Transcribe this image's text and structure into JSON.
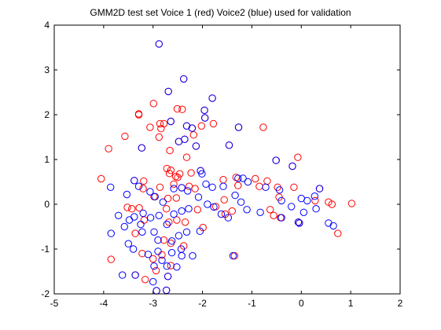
{
  "chart_data": {
    "type": "scatter",
    "title": "GMM2D test set Voice 1 (red) Voice2 (blue) used for validation",
    "xlabel": "",
    "ylabel": "",
    "xlim": [
      -5,
      2
    ],
    "ylim": [
      -2,
      4
    ],
    "xticks": [
      -5,
      -4,
      -3,
      -2,
      -1,
      0,
      1,
      2
    ],
    "yticks": [
      -2,
      -1,
      0,
      1,
      2,
      3,
      4
    ],
    "grid": false,
    "marker": "circle",
    "series": [
      {
        "color": "#ff0000",
        "points": [
          [
            -2.88,
            3.58
          ],
          [
            -2.38,
            2.8
          ],
          [
            -2.69,
            2.52
          ],
          [
            -2.99,
            2.25
          ],
          [
            -3.29,
            2.02
          ],
          [
            -3.29,
            2.0
          ],
          [
            -2.51,
            2.13
          ],
          [
            -2.41,
            2.12
          ],
          [
            -1.96,
            2.1
          ],
          [
            -1.8,
            2.37
          ],
          [
            -1.95,
            1.93
          ],
          [
            -2.78,
            1.8
          ],
          [
            -2.86,
            1.8
          ],
          [
            -2.64,
            1.85
          ],
          [
            -3.06,
            1.72
          ],
          [
            -2.84,
            1.69
          ],
          [
            -2.32,
            1.75
          ],
          [
            -2.21,
            1.7
          ],
          [
            -2.18,
            1.55
          ],
          [
            -2.02,
            1.75
          ],
          [
            -1.78,
            1.8
          ],
          [
            -1.27,
            1.72
          ],
          [
            -0.77,
            1.72
          ],
          [
            -2.88,
            1.5
          ],
          [
            -3.57,
            1.52
          ],
          [
            -2.36,
            1.45
          ],
          [
            -2.13,
            1.3
          ],
          [
            -2.66,
            1.2
          ],
          [
            -2.48,
            1.4
          ],
          [
            -3.9,
            1.24
          ],
          [
            -1.46,
            1.32
          ],
          [
            -2.32,
            1.05
          ],
          [
            -3.23,
            1.26
          ],
          [
            -0.07,
            1.05
          ],
          [
            -0.51,
            0.98
          ],
          [
            -0.18,
            0.85
          ],
          [
            -2.72,
            0.8
          ],
          [
            -2.64,
            0.76
          ],
          [
            -2.67,
            0.69
          ],
          [
            -2.54,
            0.62
          ],
          [
            -2.46,
            0.68
          ],
          [
            -2.5,
            0.6
          ],
          [
            -2.23,
            0.7
          ],
          [
            -2.04,
            0.75
          ],
          [
            -4.05,
            0.57
          ],
          [
            -3.38,
            0.53
          ],
          [
            -3.19,
            0.52
          ],
          [
            -1.32,
            0.6
          ],
          [
            -0.93,
            0.57
          ],
          [
            -0.69,
            0.52
          ],
          [
            -3.2,
            0.35
          ],
          [
            -2.86,
            0.38
          ],
          [
            -2.58,
            0.45
          ],
          [
            -2.42,
            0.37
          ],
          [
            -2.27,
            0.4
          ],
          [
            -2.15,
            0.35
          ],
          [
            -1.58,
            0.55
          ],
          [
            -1.28,
            0.42
          ],
          [
            -0.85,
            0.4
          ],
          [
            -0.48,
            0.38
          ],
          [
            -0.15,
            0.38
          ],
          [
            0.37,
            0.35
          ],
          [
            -2.98,
            0.17
          ],
          [
            -2.7,
            0.13
          ],
          [
            -2.53,
            0.14
          ],
          [
            -1.56,
            0.1
          ],
          [
            -0.45,
            0.16
          ],
          [
            0.28,
            0.08
          ],
          [
            0.55,
            0.05
          ],
          [
            1.02,
            0.02
          ],
          [
            0.62,
            0.0
          ],
          [
            -3.52,
            -0.07
          ],
          [
            -3.28,
            -0.08
          ],
          [
            -2.73,
            -0.1
          ],
          [
            -1.4,
            -0.15
          ],
          [
            -1.73,
            -0.05
          ],
          [
            -3.43,
            -0.1
          ],
          [
            -2.1,
            -0.12
          ],
          [
            -0.63,
            -0.12
          ],
          [
            -0.56,
            -0.25
          ],
          [
            -0.42,
            -0.3
          ],
          [
            -3.18,
            -0.35
          ],
          [
            -2.68,
            -0.4
          ],
          [
            -2.52,
            -0.35
          ],
          [
            -2.35,
            -0.4
          ],
          [
            -1.54,
            -0.22
          ],
          [
            -0.06,
            -0.4
          ],
          [
            -0.04,
            -0.42
          ],
          [
            -1.99,
            -0.52
          ],
          [
            0.74,
            -0.65
          ],
          [
            -3.36,
            -0.65
          ],
          [
            -2.78,
            -0.8
          ],
          [
            -2.64,
            -0.87
          ],
          [
            -2.38,
            -0.93
          ],
          [
            -3.22,
            -1.1
          ],
          [
            -3.0,
            -1.22
          ],
          [
            -2.82,
            -1.13
          ],
          [
            -3.85,
            -1.23
          ],
          [
            -2.64,
            -1.37
          ],
          [
            -1.35,
            -1.15
          ],
          [
            -2.94,
            -1.48
          ],
          [
            -3.36,
            -1.58
          ],
          [
            -3.16,
            -1.68
          ],
          [
            -2.7,
            -1.61
          ],
          [
            -2.73,
            -1.92
          ],
          [
            -2.93,
            -1.93
          ]
        ]
      },
      {
        "color": "#0000ff",
        "points": [
          [
            -2.88,
            3.58
          ],
          [
            -2.38,
            2.8
          ],
          [
            -2.69,
            2.52
          ],
          [
            -1.96,
            2.1
          ],
          [
            -1.8,
            2.37
          ],
          [
            -1.95,
            1.93
          ],
          [
            -2.64,
            1.85
          ],
          [
            -2.32,
            1.75
          ],
          [
            -2.21,
            1.7
          ],
          [
            -1.27,
            1.72
          ],
          [
            -2.36,
            1.45
          ],
          [
            -2.13,
            1.3
          ],
          [
            -2.48,
            1.4
          ],
          [
            -3.23,
            1.26
          ],
          [
            -1.46,
            1.32
          ],
          [
            -0.51,
            0.98
          ],
          [
            -0.18,
            0.85
          ],
          [
            -2.04,
            0.75
          ],
          [
            -2.01,
            0.68
          ],
          [
            -1.93,
            0.45
          ],
          [
            -1.8,
            0.38
          ],
          [
            -1.28,
            0.58
          ],
          [
            -1.18,
            0.58
          ],
          [
            -1.08,
            0.5
          ],
          [
            -0.72,
            0.38
          ],
          [
            -0.44,
            0.32
          ],
          [
            -3.86,
            0.38
          ],
          [
            -3.53,
            0.22
          ],
          [
            -3.38,
            0.53
          ],
          [
            -3.29,
            0.4
          ],
          [
            -3.06,
            0.28
          ],
          [
            -2.96,
            0.17
          ],
          [
            -2.8,
            0.05
          ],
          [
            -2.58,
            0.35
          ],
          [
            -2.42,
            0.37
          ],
          [
            -2.3,
            0.3
          ],
          [
            -2.08,
            0.16
          ],
          [
            -1.9,
            0.0
          ],
          [
            -1.77,
            -0.06
          ],
          [
            -1.58,
            0.4
          ],
          [
            -1.34,
            0.2
          ],
          [
            -1.22,
            0.05
          ],
          [
            -1.1,
            -0.12
          ],
          [
            -0.83,
            -0.18
          ],
          [
            -0.4,
            0.08
          ],
          [
            -0.2,
            -0.05
          ],
          [
            0.0,
            0.13
          ],
          [
            0.12,
            0.08
          ],
          [
            0.27,
            0.18
          ],
          [
            0.37,
            0.35
          ],
          [
            -3.7,
            -0.25
          ],
          [
            -3.48,
            -0.35
          ],
          [
            -3.38,
            -0.28
          ],
          [
            -3.2,
            -0.2
          ],
          [
            -3.05,
            -0.3
          ],
          [
            -2.88,
            -0.25
          ],
          [
            -2.72,
            -0.45
          ],
          [
            -2.58,
            -0.22
          ],
          [
            -2.42,
            -0.15
          ],
          [
            -2.28,
            -0.1
          ],
          [
            -1.62,
            -0.22
          ],
          [
            -1.48,
            -0.3
          ],
          [
            -0.4,
            -0.3
          ],
          [
            0.05,
            -0.18
          ],
          [
            0.3,
            -0.1
          ],
          [
            0.55,
            -0.42
          ],
          [
            0.65,
            -0.48
          ],
          [
            -3.85,
            -0.65
          ],
          [
            -3.58,
            -0.5
          ],
          [
            -3.22,
            -0.62
          ],
          [
            -2.98,
            -0.62
          ],
          [
            -2.9,
            -0.8
          ],
          [
            -2.62,
            -0.82
          ],
          [
            -2.48,
            -0.7
          ],
          [
            -2.32,
            -0.62
          ],
          [
            -2.05,
            -0.6
          ],
          [
            -3.5,
            -0.88
          ],
          [
            -3.4,
            -1.0
          ],
          [
            -3.1,
            -1.12
          ],
          [
            -2.82,
            -1.25
          ],
          [
            -2.62,
            -1.08
          ],
          [
            -2.42,
            -1.15
          ],
          [
            -2.2,
            -1.15
          ],
          [
            -1.38,
            -1.15
          ],
          [
            -2.98,
            -1.38
          ],
          [
            -2.72,
            -1.38
          ],
          [
            -2.52,
            -1.4
          ],
          [
            -3.62,
            -1.58
          ],
          [
            -3.36,
            -1.58
          ],
          [
            -3.0,
            -1.73
          ],
          [
            -2.7,
            -1.61
          ],
          [
            -2.73,
            -1.92
          ],
          [
            -2.93,
            -1.93
          ],
          [
            -2.43,
            -1.0
          ],
          [
            -2.9,
            -1.05
          ],
          [
            -3.25,
            -0.45
          ],
          [
            -0.06,
            -0.4
          ],
          [
            -0.04,
            -0.42
          ]
        ]
      }
    ]
  }
}
